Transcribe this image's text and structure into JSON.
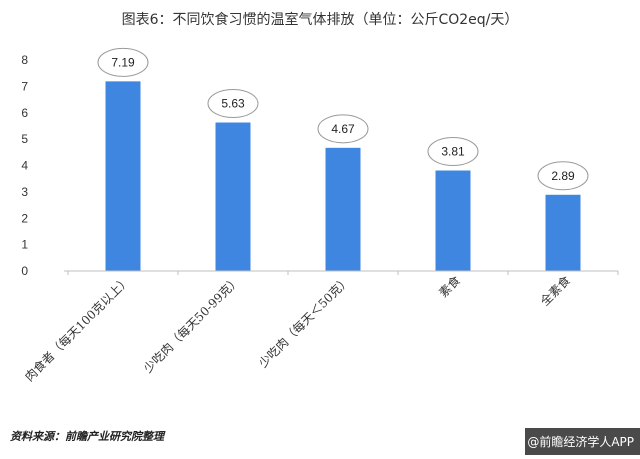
{
  "chart_data": {
    "type": "bar",
    "title": "图表6：不同饮食习惯的温室气体排放（单位：公斤CO2eq/天）",
    "categories": [
      "肉食者（每天100克以上）",
      "少吃肉（每天50-99克）",
      "少吃肉（每天＜50克）",
      "素食",
      "全素食"
    ],
    "values": [
      7.19,
      5.63,
      4.67,
      3.81,
      2.89
    ],
    "value_labels": [
      "7.19",
      "5.63",
      "4.67",
      "3.81",
      "2.89"
    ],
    "y_ticks": [
      "0",
      "1",
      "2",
      "3",
      "4",
      "5",
      "6",
      "7",
      "8"
    ],
    "ylim": [
      0,
      8
    ],
    "xlabel": "",
    "ylabel": "",
    "grid": false,
    "legend": "none"
  },
  "colors": {
    "bar": "#3f86e0",
    "axis": "#bfbfbf",
    "label_bubble_border": "#9a9a9a",
    "brand_bar": "#4a4a4a"
  },
  "footer": {
    "source": "资料来源：前瞻产业研究院整理",
    "brand": "@前瞻经济学人APP"
  }
}
